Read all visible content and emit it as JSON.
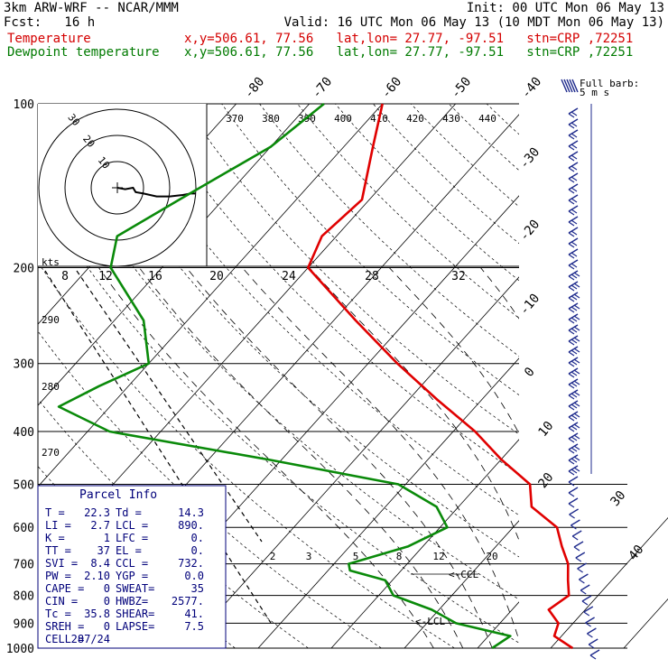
{
  "header": {
    "line1_left": "3km ARW-WRF -- NCAR/MMM",
    "line1_right": "Init: 00 UTC Mon 06 May 13",
    "line2_left": "Fcst:   16 h",
    "line2_right": "Valid: 16 UTC Mon 06 May 13 (10 MDT Mon 06 May 13)",
    "temp_label": "Temperature",
    "temp_info": "x,y=506.61, 77.56   lat,lon= 27.77, -97.51   stn=CRP ,72251",
    "dew_label": "Dewpoint temperature",
    "dew_info": "x,y=506.61, 77.56   lat,lon= 27.77, -97.51   stn=CRP ,72251"
  },
  "colors": {
    "temperature": "#e00000",
    "dewpoint": "#0a8a0a",
    "wind": "#1e2a8c",
    "parcel": "#00007a"
  },
  "wind_legend": {
    "line1": "Full barb:",
    "line2": "5 m s"
  },
  "parcel_info": {
    "title": "Parcel Info",
    "rows": [
      {
        "l": "T  =",
        "lv": "22.3",
        "r": "Td =",
        "rv": "14.3"
      },
      {
        "l": "LI =",
        "lv": "2.7",
        "r": "LCL =",
        "rv": "890."
      },
      {
        "l": "K  =",
        "lv": "1",
        "r": "LFC =",
        "rv": "0."
      },
      {
        "l": "TT =",
        "lv": "37",
        "r": "EL  =",
        "rv": "0."
      },
      {
        "l": "SVI =",
        "lv": "8.4",
        "r": "CCL =",
        "rv": "732."
      },
      {
        "l": "PW =",
        "lv": "2.10",
        "r": "YGP =",
        "rv": "0.0"
      },
      {
        "l": "CAPE =",
        "lv": "0",
        "r": "SWEAT=",
        "rv": "35"
      },
      {
        "l": "CIN =",
        "lv": "0",
        "r": "HWBZ=",
        "rv": "2577."
      },
      {
        "l": "Tc =",
        "lv": "35.8",
        "r": "SHEAR=",
        "rv": "41."
      },
      {
        "l": "SREH =",
        "lv": "0",
        "r": "LAPSE=",
        "rv": "7.5"
      },
      {
        "l": "CELL =",
        "lv": "287/24",
        "r": "",
        "rv": ""
      }
    ]
  },
  "hodograph": {
    "kts_label": "kts",
    "rings": [
      {
        "label": "10",
        "r_kts": 10
      },
      {
        "label": "20",
        "r_kts": 20
      },
      {
        "label": "30",
        "r_kts": 30
      }
    ],
    "speed_labels": [
      "8",
      "12",
      "16",
      "20",
      "24",
      "28",
      "32"
    ],
    "trace_kts": [
      [
        0,
        0
      ],
      [
        3,
        -1
      ],
      [
        6,
        0
      ],
      [
        7,
        -3
      ],
      [
        10,
        -4
      ],
      [
        15,
        -6
      ],
      [
        20,
        -6
      ],
      [
        25,
        -5
      ],
      [
        28,
        -4
      ],
      [
        30,
        -4
      ]
    ]
  },
  "chart_data": {
    "type": "line",
    "title": "",
    "xlabel": "",
    "ylabel": "",
    "pressure_ticks": [
      "100",
      "200",
      "300",
      "400",
      "500",
      "600",
      "700",
      "800",
      "900",
      "1000"
    ],
    "pressure_levels_hpa": [
      100,
      200,
      300,
      400,
      500,
      600,
      700,
      800,
      900,
      1000
    ],
    "temperature_axis_labels": [
      "-80",
      "-70",
      "-60",
      "-50",
      "-40",
      "-30",
      "-20",
      "-10",
      "0",
      "10",
      "20",
      "30",
      "40"
    ],
    "theta_labels_top": [
      "370",
      "380",
      "390",
      "400",
      "410",
      "420",
      "430",
      "440"
    ],
    "theta_labels_left": [
      "290",
      "280",
      "270"
    ],
    "mixing_ratio_labels": [
      "2",
      "3",
      "5",
      "8",
      "12",
      "20"
    ],
    "annotations": [
      "<-CCL",
      "<-LCL"
    ],
    "series": [
      {
        "name": "Temperature",
        "pressure_hpa": [
          100,
          120,
          150,
          175,
          200,
          250,
          300,
          350,
          400,
          450,
          500,
          550,
          600,
          650,
          700,
          750,
          800,
          850,
          900,
          950,
          1000
        ],
        "temperature_c": [
          -70,
          -66,
          -61,
          -62,
          -60,
          -47,
          -36,
          -26,
          -17,
          -10,
          -3,
          0,
          6,
          9,
          12,
          14,
          16,
          15,
          18,
          19,
          23
        ]
      },
      {
        "name": "Dewpoint temperature",
        "pressure_hpa": [
          100,
          120,
          150,
          175,
          200,
          250,
          300,
          330,
          360,
          400,
          450,
          500,
          550,
          600,
          650,
          700,
          720,
          750,
          800,
          850,
          900,
          950,
          1000
        ],
        "dewpoint_c": [
          -78,
          -80,
          -86,
          -90,
          -87,
          -76,
          -70,
          -74,
          -77,
          -67,
          -42,
          -21,
          -13,
          -9,
          -12,
          -18,
          -17,
          -11,
          -8,
          -1,
          4,
          13,
          12
        ]
      }
    ],
    "winds": {
      "description": "wind barbs along right edge, 1000-100 hPa",
      "full_barb_ms": 5
    }
  }
}
